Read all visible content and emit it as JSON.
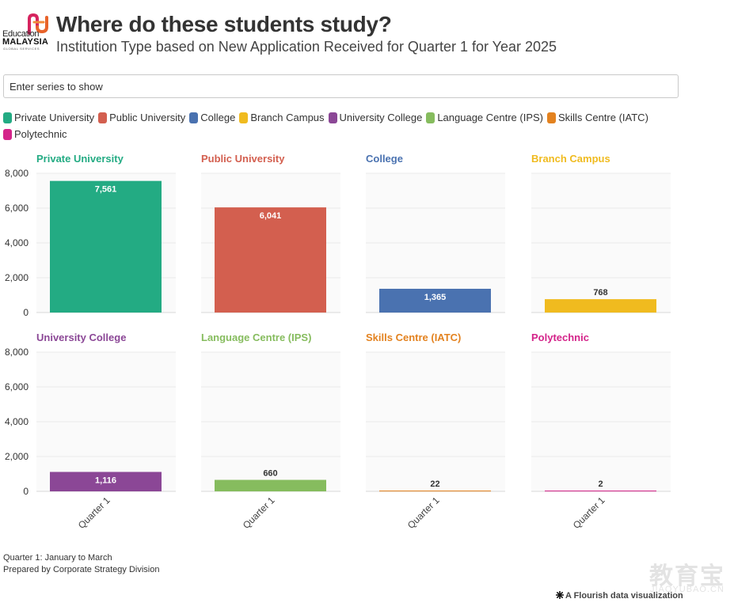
{
  "header": {
    "title": "Where do these students study?",
    "subtitle": "Institution Type based on New Application Received for Quarter 1 for Year 2025",
    "logo": {
      "text_top": "Education",
      "text_main": "MALAYSIA",
      "text_sub": "GLOBAL SERVICES",
      "colors": [
        "#e8632a",
        "#d6245f"
      ]
    }
  },
  "search": {
    "placeholder": "Enter series to show"
  },
  "legend": {
    "items": [
      {
        "label": "Private University",
        "color": "#23ab83"
      },
      {
        "label": "Public University",
        "color": "#d35f4f"
      },
      {
        "label": "College",
        "color": "#4a72b0"
      },
      {
        "label": "Branch Campus",
        "color": "#f0bb1f"
      },
      {
        "label": "University College",
        "color": "#8b4796"
      },
      {
        "label": "Language Centre (IPS)",
        "color": "#86bc5e"
      },
      {
        "label": "Skills Centre (IATC)",
        "color": "#e3821f"
      },
      {
        "label": "Polytechnic",
        "color": "#d4248a"
      }
    ]
  },
  "chart_data": {
    "type": "bar",
    "layout": "small-multiples",
    "categories": [
      "Quarter 1"
    ],
    "ylim": [
      0,
      8000
    ],
    "yticks": [
      0,
      2000,
      4000,
      6000,
      8000
    ],
    "ytick_labels": [
      "0",
      "2,000",
      "4,000",
      "6,000",
      "8,000"
    ],
    "grid": true,
    "series": [
      {
        "name": "Private University",
        "values": [
          7561
        ],
        "labels": [
          "7,561"
        ],
        "color": "#23ab83"
      },
      {
        "name": "Public University",
        "values": [
          6041
        ],
        "labels": [
          "6,041"
        ],
        "color": "#d35f4f"
      },
      {
        "name": "College",
        "values": [
          1365
        ],
        "labels": [
          "1,365"
        ],
        "color": "#4a72b0"
      },
      {
        "name": "Branch Campus",
        "values": [
          768
        ],
        "labels": [
          "768"
        ],
        "color": "#f0bb1f"
      },
      {
        "name": "University College",
        "values": [
          1116
        ],
        "labels": [
          "1,116"
        ],
        "color": "#8b4796"
      },
      {
        "name": "Language Centre (IPS)",
        "values": [
          660
        ],
        "labels": [
          "660"
        ],
        "color": "#86bc5e"
      },
      {
        "name": "Skills Centre (IATC)",
        "values": [
          22
        ],
        "labels": [
          "22"
        ],
        "color": "#e3821f"
      },
      {
        "name": "Polytechnic",
        "values": [
          2
        ],
        "labels": [
          "2"
        ],
        "color": "#d4248a"
      }
    ]
  },
  "footer": {
    "note1": "Quarter 1: January to March",
    "note2": "Prepared by Corporate Strategy Division",
    "credit": "A Flourish data visualization"
  },
  "watermark": {
    "text_cn": "教育宝",
    "text_en": "JIAOYUBAO.CN"
  }
}
